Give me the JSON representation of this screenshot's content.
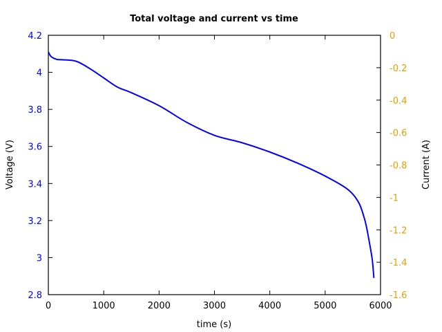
{
  "chart_data": {
    "type": "line",
    "title": "Total voltage and current vs time",
    "xlabel": "time (s)",
    "ylabel": "Voltage (V)",
    "y2label": "Current (A)",
    "xlim": [
      0,
      6000
    ],
    "ylim": [
      2.8,
      4.2
    ],
    "y2lim": [
      -1.6,
      0
    ],
    "x_ticks": [
      "0",
      "1000",
      "2000",
      "3000",
      "4000",
      "5000",
      "6000"
    ],
    "y_ticks": [
      "2.8",
      "3",
      "3.2",
      "3.4",
      "3.6",
      "3.8",
      "4",
      "4.2"
    ],
    "y2_ticks": [
      "-1.6",
      "-1.4",
      "-1.2",
      "-1",
      "-0.8",
      "-0.6",
      "-0.4",
      "-0.2",
      "0"
    ],
    "grid": false,
    "colors": {
      "voltage": "#0000ff",
      "current": "#e69f00",
      "axes": "#000000"
    },
    "series": [
      {
        "name": "Voltage",
        "axis": "left",
        "color": "#0000ff",
        "x": [
          0,
          50,
          150,
          250,
          500,
          750,
          1000,
          1250,
          1500,
          2000,
          2500,
          3000,
          3500,
          4000,
          4500,
          5000,
          5400,
          5600,
          5700,
          5750,
          5800,
          5850,
          5880
        ],
        "y": [
          4.11,
          4.085,
          4.07,
          4.068,
          4.06,
          4.02,
          3.97,
          3.92,
          3.89,
          3.82,
          3.73,
          3.66,
          3.62,
          3.57,
          3.51,
          3.44,
          3.37,
          3.3,
          3.22,
          3.16,
          3.08,
          2.99,
          2.89
        ]
      },
      {
        "name": "Current",
        "axis": "right",
        "color": "#e69f00",
        "x": [],
        "y": []
      }
    ]
  }
}
